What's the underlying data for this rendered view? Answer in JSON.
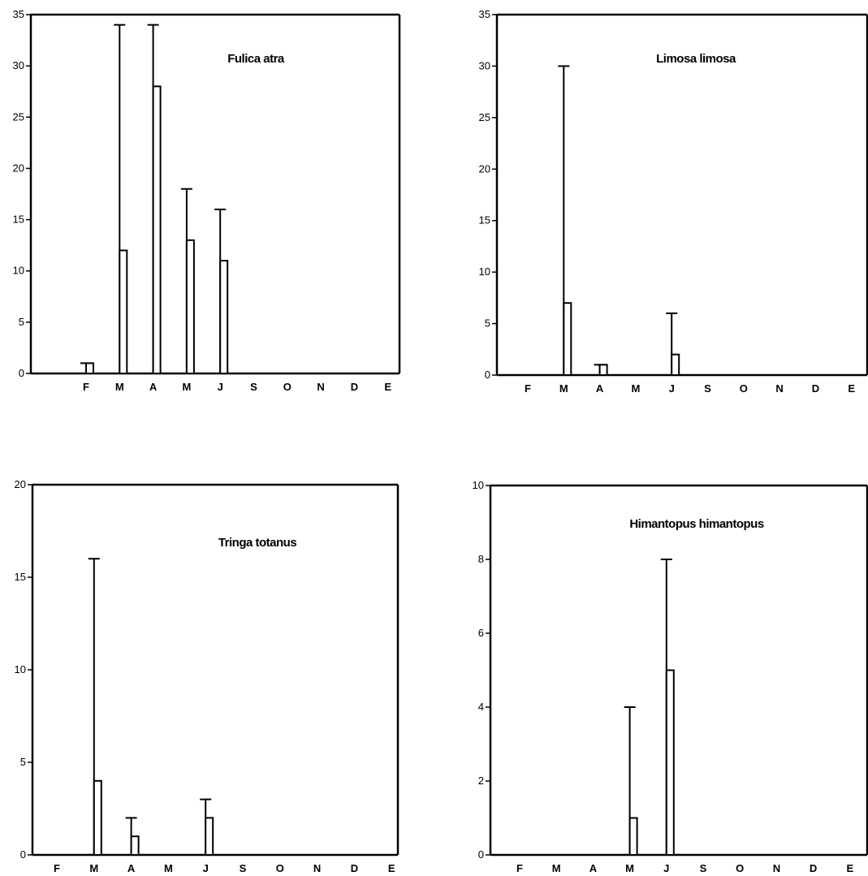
{
  "chart_data": [
    {
      "type": "bar",
      "title": "Fulica atra",
      "categories": [
        "F",
        "M",
        "A",
        "M",
        "J",
        "S",
        "O",
        "N",
        "D",
        "E"
      ],
      "values": [
        1,
        12,
        28,
        13,
        11,
        0,
        0,
        0,
        0,
        0
      ],
      "error_max": [
        1,
        34,
        34,
        18,
        16,
        null,
        null,
        null,
        null,
        null
      ],
      "ylim": [
        0,
        35
      ],
      "yticks": [
        0,
        5,
        10,
        15,
        20,
        25,
        30,
        35
      ],
      "ytick_labels": [
        "0",
        "5",
        "10",
        "15",
        "20",
        "25",
        "30",
        "35"
      ]
    },
    {
      "type": "bar",
      "title": "Limosa limosa",
      "categories": [
        "F",
        "M",
        "A",
        "M",
        "J",
        "S",
        "O",
        "N",
        "D",
        "E"
      ],
      "values": [
        0,
        7,
        1,
        0,
        2,
        0,
        0,
        0,
        0,
        0
      ],
      "error_max": [
        null,
        30,
        1,
        null,
        6,
        null,
        null,
        null,
        null,
        null
      ],
      "ylim": [
        0,
        35
      ],
      "yticks": [
        0,
        5,
        10,
        15,
        20,
        25,
        30,
        35
      ],
      "ytick_labels": [
        "0",
        "5",
        "10",
        "15",
        "20",
        "25",
        "30",
        "35"
      ]
    },
    {
      "type": "bar",
      "title": "Tringa totanus",
      "categories": [
        "F",
        "M",
        "A",
        "M",
        "J",
        "S",
        "O",
        "N",
        "D",
        "E"
      ],
      "values": [
        0,
        4,
        1,
        0,
        2,
        0,
        0,
        0,
        0,
        0
      ],
      "error_max": [
        null,
        16,
        2,
        null,
        3,
        null,
        null,
        null,
        null,
        null
      ],
      "ylim": [
        0,
        20
      ],
      "yticks": [
        0,
        5,
        10,
        15,
        20
      ],
      "ytick_labels": [
        "0",
        "5",
        "10",
        "15",
        "20"
      ]
    },
    {
      "type": "bar",
      "title": "Himantopus himantopus",
      "categories": [
        "F",
        "M",
        "A",
        "M",
        "J",
        "S",
        "O",
        "N",
        "D",
        "E"
      ],
      "values": [
        0,
        0,
        0,
        1,
        5,
        0,
        0,
        0,
        0,
        0
      ],
      "error_max": [
        null,
        null,
        null,
        4,
        8,
        null,
        null,
        null,
        null,
        null
      ],
      "ylim": [
        0,
        10
      ],
      "yticks": [
        0,
        2,
        4,
        6,
        8,
        10
      ],
      "ytick_labels": [
        "0",
        "2",
        "4",
        "6",
        "8",
        "10"
      ]
    }
  ]
}
